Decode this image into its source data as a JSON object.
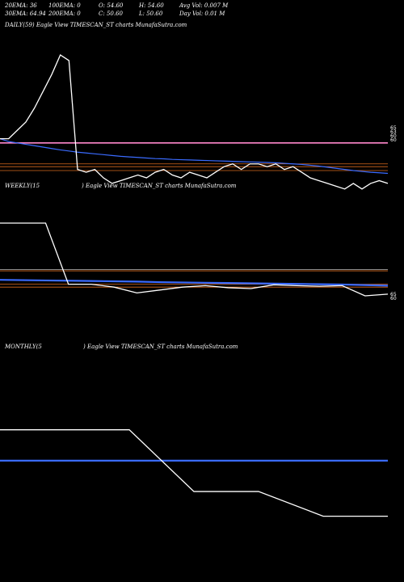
{
  "header": {
    "row1": [
      "20EMA: 36",
      "100EMA: 0",
      "O: 54.60",
      "H: 54.60",
      "Avg Vol: 0.007 M"
    ],
    "row2": [
      "30EMA: 64.94",
      "200EMA: 0",
      "C: 50.60",
      "L: 50.60",
      "Day Vol: 0.01 M"
    ]
  },
  "panels": {
    "daily_title": "DAILY(59) Eagle   View  TIMESCAN_ST charts MunafaSutra.com",
    "weekly_title_a": "WEEKLY(15",
    "weekly_title_b": ") Eagle   View  TIMESCAN_ST charts MunafaSutra.com",
    "monthly_title_a": "MONTHLY(5",
    "monthly_title_b": ") Eagle   View  TIMESCAN_ST charts MunafaSutra.com"
  },
  "colors": {
    "background": "#000000",
    "price": "#ffffff",
    "ema_blue": "#3a6bff",
    "ema_pink": "#ff88cc",
    "ref_orange": "#d96a1e",
    "ref_gray": "#bbbbbb"
  },
  "chart_data": [
    {
      "type": "line",
      "name": "daily",
      "ylim": [
        55,
        110
      ],
      "tick_labels": [
        "65",
        "63",
        "60",
        "60"
      ],
      "price": [
        69,
        69,
        72,
        75,
        80,
        86,
        92,
        99,
        97,
        58,
        57,
        58,
        55,
        53,
        54,
        55,
        56,
        55,
        57,
        58,
        56,
        55,
        57,
        56,
        55,
        57,
        59,
        60,
        58,
        60,
        60,
        59,
        60,
        58,
        59,
        57,
        55,
        54,
        53,
        52,
        51,
        53,
        51,
        53,
        54,
        53
      ],
      "ema_blue": [
        69,
        68,
        67.5,
        67,
        66.5,
        66,
        65.5,
        65,
        64.6,
        64.2,
        63.9,
        63.6,
        63.3,
        63,
        62.7,
        62.5,
        62.3,
        62.1,
        61.9,
        61.8,
        61.6,
        61.5,
        61.4,
        61.3,
        61.2,
        61.1,
        61,
        60.9,
        60.8,
        60.7,
        60.6,
        60.5,
        60.4,
        60.2,
        60,
        59.8,
        59.5,
        59.2,
        58.8,
        58.4,
        58,
        57.6,
        57.3,
        57,
        56.8,
        56.6
      ],
      "ema_pink": 67.5,
      "ref_levels": [
        60,
        59,
        57.6
      ]
    },
    {
      "type": "line",
      "name": "weekly",
      "ylim": [
        40,
        90
      ],
      "tick_labels": [
        "65",
        "60"
      ],
      "price": [
        80,
        80,
        80,
        59,
        59,
        58,
        56,
        57,
        58,
        58.5,
        57.8,
        57.5,
        58.8,
        58.5,
        58.3,
        58.5,
        55,
        55.6
      ],
      "ema_blue": [
        60.5,
        60.4,
        60.3,
        60.2,
        60.1,
        60,
        59.9,
        59.7,
        59.6,
        59.5,
        59.4,
        59.3,
        59.2,
        59.1,
        59,
        58.9,
        58.7,
        58.5
      ],
      "ref_levels": [
        64,
        63.6,
        59,
        58
      ]
    },
    {
      "type": "line",
      "name": "monthly",
      "ylim": [
        20,
        110
      ],
      "tick_labels": [],
      "price": [
        80,
        80,
        80,
        55,
        55,
        45,
        45
      ],
      "ema_blue": [
        67.5,
        67.5,
        67.5,
        67.5,
        67.5,
        67.5,
        67.5
      ]
    }
  ]
}
